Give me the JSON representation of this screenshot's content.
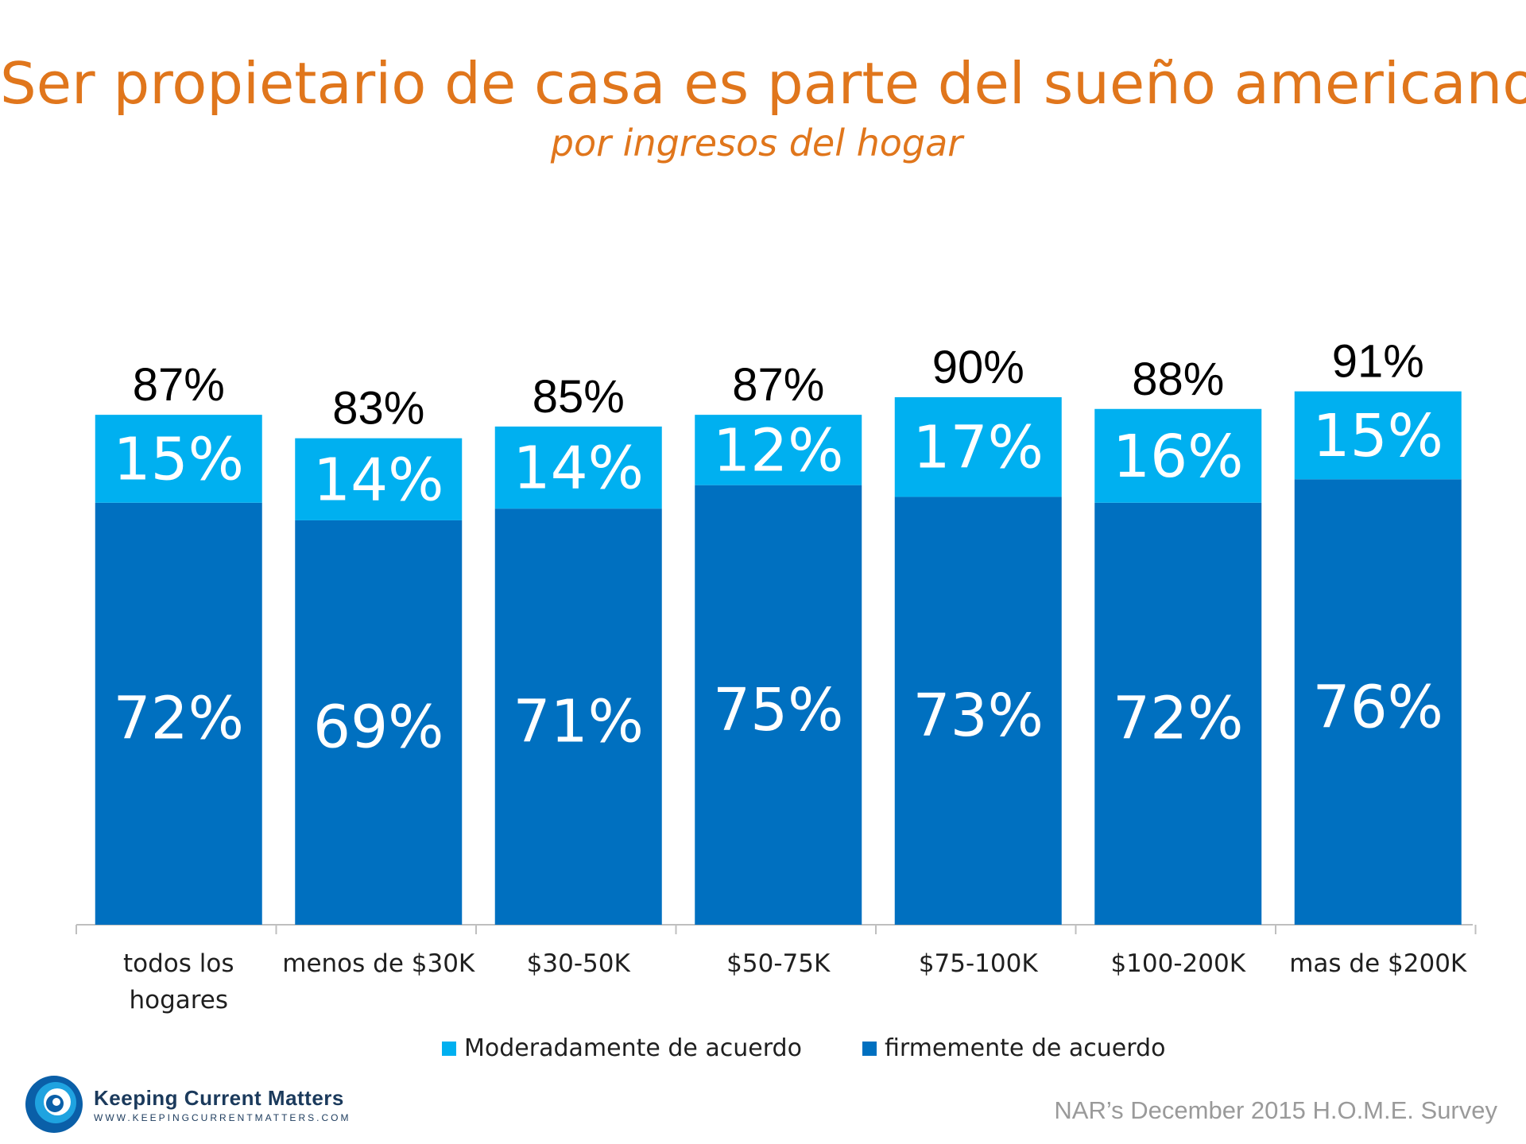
{
  "chart_data": {
    "type": "bar",
    "stacked": true,
    "title": "Ser propietario de casa es parte del sueño americano",
    "subtitle": "por ingresos del hogar",
    "categories": [
      [
        "todos los",
        "hogares"
      ],
      [
        "menos de $30K"
      ],
      [
        "$30-50K"
      ],
      [
        "$50-75K"
      ],
      [
        "$75-100K"
      ],
      [
        "$100-200K"
      ],
      [
        "mas de $200K"
      ]
    ],
    "series": [
      {
        "name": "firmemente de acuerdo",
        "color": "#0070C0",
        "values": [
          72,
          69,
          71,
          75,
          73,
          72,
          76
        ]
      },
      {
        "name": "Moderadamente de acuerdo",
        "color": "#00B0F0",
        "values": [
          15,
          14,
          14,
          12,
          17,
          16,
          15
        ]
      }
    ],
    "totals": [
      87,
      83,
      85,
      87,
      90,
      88,
      91
    ],
    "value_suffix": "%",
    "ylim": [
      0,
      100
    ],
    "grid": false,
    "legend_position": "bottom",
    "xlabel": "",
    "ylabel": ""
  },
  "legend": {
    "moderate_label": "Moderadamente de acuerdo",
    "strong_label": "firmemente de acuerdo"
  },
  "footer": {
    "logo_name": "Keeping Current Matters",
    "logo_url": "WWW.KEEPINGCURRENTMATTERS.COM",
    "source": "NAR’s December 2015 H.O.M.E. Survey"
  }
}
